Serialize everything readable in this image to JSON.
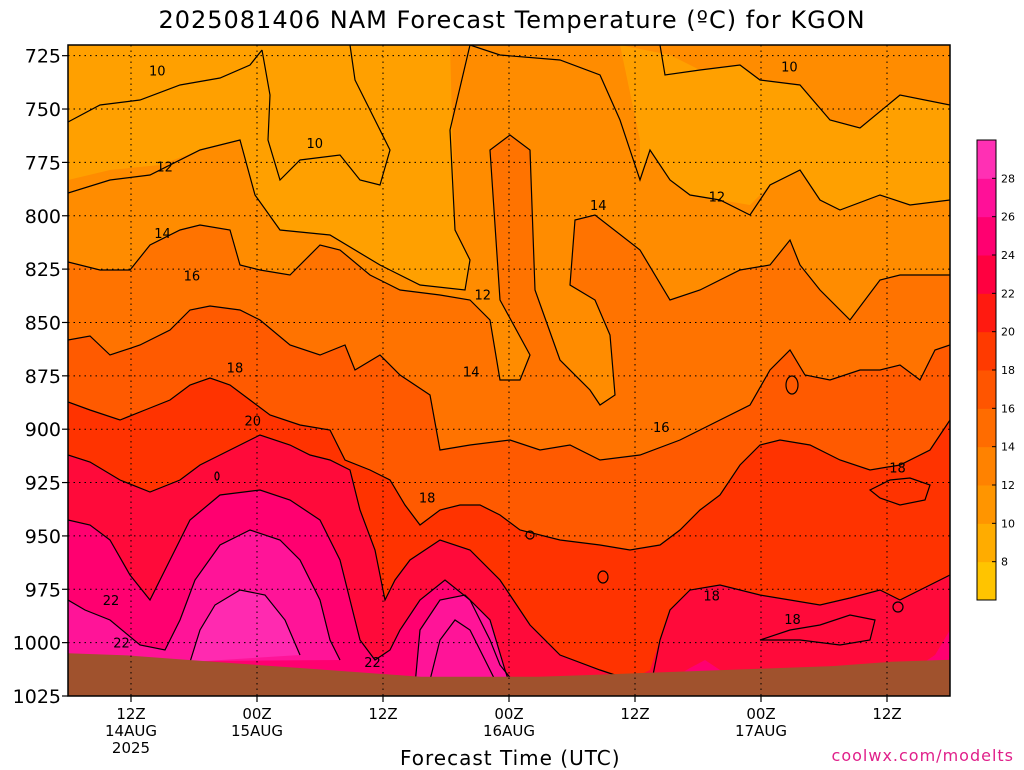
{
  "title": "2025081406 NAM Forecast Temperature (ºC) for KGON",
  "credit": "coolwx.com/modelts",
  "chart_data": {
    "type": "heatmap",
    "title": "2025081406 NAM Forecast Temperature (ºC) for KGON",
    "xlabel": "Forecast Time (UTC)",
    "ylabel": "",
    "yaxis": {
      "ticks": [
        725,
        750,
        775,
        800,
        825,
        850,
        875,
        900,
        925,
        950,
        975,
        1000,
        1025
      ],
      "range": [
        720,
        1025
      ],
      "inverted": true
    },
    "xaxis": {
      "ticks": [
        {
          "l1": "12Z",
          "l2": "14AUG",
          "l3": "2025",
          "h": 6
        },
        {
          "l1": "00Z",
          "l2": "15AUG",
          "l3": "",
          "h": 18
        },
        {
          "l1": "12Z",
          "l2": "",
          "l3": "",
          "h": 30
        },
        {
          "l1": "00Z",
          "l2": "16AUG",
          "l3": "",
          "h": 42
        },
        {
          "l1": "12Z",
          "l2": "",
          "l3": "",
          "h": 54
        },
        {
          "l1": "00Z",
          "l2": "17AUG",
          "l3": "",
          "h": 66
        },
        {
          "l1": "12Z",
          "l2": "",
          "l3": "",
          "h": 78
        }
      ],
      "range_hours": [
        0,
        84
      ]
    },
    "colorbar": {
      "labels": [
        8,
        10,
        12,
        14,
        16,
        18,
        20,
        22,
        24,
        26,
        28
      ],
      "colors": [
        "#ffc400",
        "#ffac00",
        "#ff9500",
        "#ff8200",
        "#ff6c00",
        "#ff5500",
        "#ff3a00",
        "#ff1a10",
        "#ff0040",
        "#ff0070",
        "#ff1098",
        "#ff30b4"
      ]
    },
    "contour_labels": [
      {
        "text": "10",
        "h": 8.5,
        "p": 732
      },
      {
        "text": "10",
        "h": 23.5,
        "p": 766
      },
      {
        "text": "10",
        "h": 68.7,
        "p": 730
      },
      {
        "text": "12",
        "h": 9.2,
        "p": 777
      },
      {
        "text": "12",
        "h": 39.5,
        "p": 837
      },
      {
        "text": "12",
        "h": 61.8,
        "p": 791
      },
      {
        "text": "14",
        "h": 9.0,
        "p": 808
      },
      {
        "text": "14",
        "h": 38.4,
        "p": 873
      },
      {
        "text": "14",
        "h": 50.5,
        "p": 795
      },
      {
        "text": "16",
        "h": 11.8,
        "p": 828
      },
      {
        "text": "16",
        "h": 56.5,
        "p": 899
      },
      {
        "text": "18",
        "h": 15.9,
        "p": 871
      },
      {
        "text": "18",
        "h": 34.2,
        "p": 932
      },
      {
        "text": "18",
        "h": 61.3,
        "p": 978
      },
      {
        "text": "18",
        "h": 69.0,
        "p": 989
      },
      {
        "text": "18",
        "h": 79.0,
        "p": 918
      },
      {
        "text": "20",
        "h": 17.6,
        "p": 896
      },
      {
        "text": "22",
        "h": 4.1,
        "p": 980
      },
      {
        "text": "22",
        "h": 5.1,
        "p": 1000
      },
      {
        "text": "22",
        "h": 29.0,
        "p": 1009
      }
    ],
    "ground_pressure": [
      1005,
      1006,
      1008,
      1010,
      1012,
      1014,
      1016,
      1016,
      1016,
      1015,
      1014,
      1013,
      1012,
      1011,
      1009,
      1008
    ]
  }
}
